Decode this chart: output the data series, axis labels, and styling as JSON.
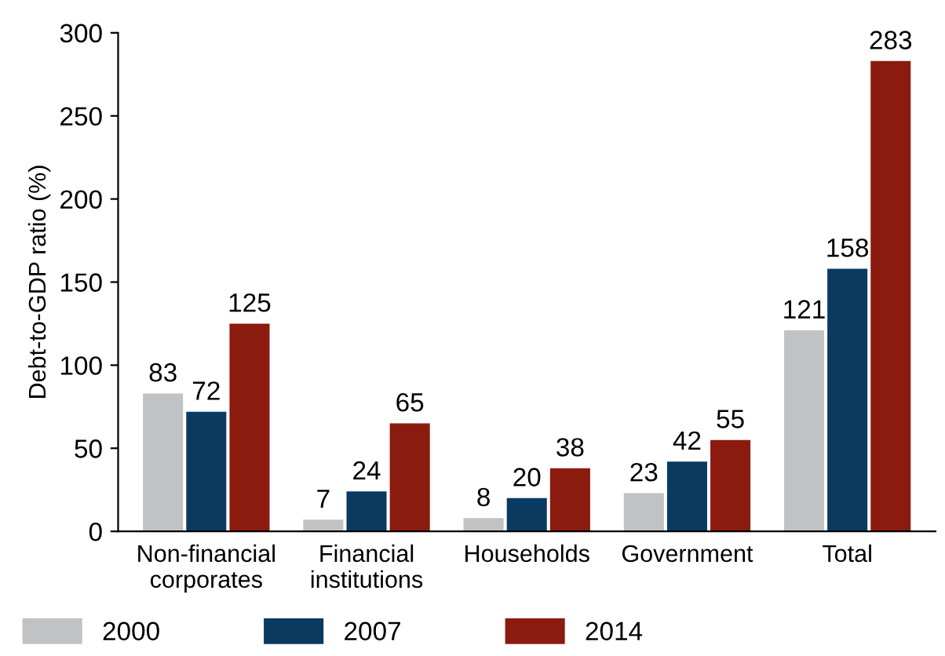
{
  "chart_data": {
    "type": "bar",
    "ylabel": "Debt-to-GDP ratio (%)",
    "categories": [
      "Non-financial\ncorporates",
      "Financial\ninstitutions",
      "Households",
      "Government",
      "Total"
    ],
    "series": [
      {
        "name": "2000",
        "color": "#c0c2c3",
        "values": [
          83,
          7,
          8,
          23,
          121
        ]
      },
      {
        "name": "2007",
        "color": "#0b3a60",
        "values": [
          72,
          24,
          20,
          42,
          158
        ]
      },
      {
        "name": "2014",
        "color": "#8b1a0f",
        "values": [
          125,
          65,
          38,
          55,
          283
        ]
      }
    ],
    "ylim": [
      0,
      300
    ],
    "yticks": [
      0,
      50,
      100,
      150,
      200,
      250,
      300
    ],
    "data_labels": true,
    "grid": false,
    "legend": "bottom"
  }
}
